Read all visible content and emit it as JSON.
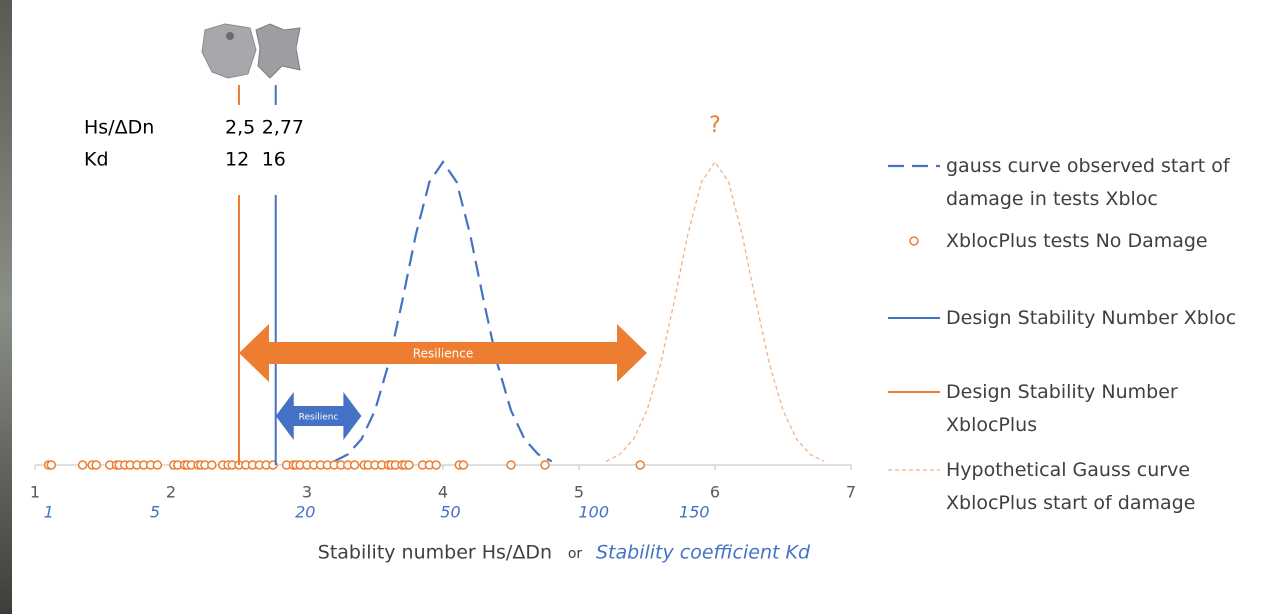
{
  "chart_data": {
    "type": "line",
    "xlabel": "Stability number Hs/ΔDn",
    "xlabel_joiner": "or",
    "x2label": "Stability coefficient Kd",
    "xlim": [
      1,
      7
    ],
    "xticks": [
      1,
      2,
      3,
      4,
      5,
      6,
      7
    ],
    "x2ticks": [
      1,
      5,
      20,
      50,
      100,
      150
    ],
    "ylim": [
      0,
      1
    ],
    "row_labels": [
      "Hs/ΔDn",
      "Kd"
    ],
    "series": [
      {
        "name": "gauss curve observed start of damage in tests Xbloc",
        "kind": "line",
        "dash": true,
        "color": "#4472c4",
        "x": [
          3.2,
          3.3,
          3.4,
          3.5,
          3.6,
          3.7,
          3.8,
          3.9,
          4.0,
          4.1,
          4.2,
          4.3,
          4.4,
          4.5,
          4.6,
          4.7,
          4.8
        ],
        "values": [
          0.012,
          0.035,
          0.085,
          0.18,
          0.334,
          0.54,
          0.76,
          0.934,
          1,
          0.934,
          0.76,
          0.54,
          0.334,
          0.18,
          0.085,
          0.035,
          0.012
        ]
      },
      {
        "name": "XblocPlus tests No Damage",
        "kind": "scatter",
        "color": "#ed7d31",
        "x": [
          1.1,
          1.12,
          1.35,
          1.42,
          1.45,
          1.55,
          1.6,
          1.62,
          1.66,
          1.7,
          1.75,
          1.8,
          1.85,
          1.9,
          2.02,
          2.05,
          2.1,
          2.12,
          2.15,
          2.2,
          2.22,
          2.25,
          2.3,
          2.38,
          2.42,
          2.45,
          2.5,
          2.55,
          2.6,
          2.65,
          2.7,
          2.75,
          2.85,
          2.9,
          2.92,
          2.95,
          3.0,
          3.05,
          3.1,
          3.15,
          3.2,
          3.25,
          3.3,
          3.35,
          3.42,
          3.45,
          3.5,
          3.55,
          3.6,
          3.62,
          3.65,
          3.7,
          3.72,
          3.75,
          3.85,
          3.9,
          3.95,
          4.12,
          4.15,
          4.5,
          4.75,
          5.45
        ],
        "values": [
          0,
          0,
          0,
          0,
          0,
          0,
          0,
          0,
          0,
          0,
          0,
          0,
          0,
          0,
          0,
          0,
          0,
          0,
          0,
          0,
          0,
          0,
          0,
          0,
          0,
          0,
          0,
          0,
          0,
          0,
          0,
          0,
          0,
          0,
          0,
          0,
          0,
          0,
          0,
          0,
          0,
          0,
          0,
          0,
          0,
          0,
          0,
          0,
          0,
          0,
          0,
          0,
          0,
          0,
          0,
          0,
          0,
          0,
          0,
          0,
          0,
          0
        ]
      },
      {
        "name": "Design Stability Number Xbloc",
        "kind": "vline",
        "color": "#4472c4",
        "value": 2.77,
        "value_label": "2,77",
        "kd": 16
      },
      {
        "name": "Design Stability Number XblocPlus",
        "kind": "vline",
        "color": "#ed7d31",
        "value": 2.5,
        "value_label": "2,5",
        "kd": 12
      },
      {
        "name": "Hypothetical Gauss curve XblocPlus start of damage",
        "kind": "line",
        "thin": true,
        "color": "#f4b183",
        "x": [
          5.2,
          5.3,
          5.4,
          5.5,
          5.6,
          5.7,
          5.8,
          5.9,
          6.0,
          6.1,
          6.2,
          6.3,
          6.4,
          6.5,
          6.6,
          6.7,
          6.8
        ],
        "values": [
          0.012,
          0.035,
          0.085,
          0.18,
          0.334,
          0.54,
          0.76,
          0.934,
          1,
          0.934,
          0.76,
          0.54,
          0.334,
          0.18,
          0.085,
          0.035,
          0.012
        ]
      }
    ],
    "arrows": [
      {
        "label": "Resilience",
        "from": 2.5,
        "to": 5.5,
        "color": "#ed7d31"
      },
      {
        "label": "Resilienc",
        "from": 2.77,
        "to": 3.4,
        "color": "#4472c4"
      }
    ],
    "annotation": "?"
  }
}
